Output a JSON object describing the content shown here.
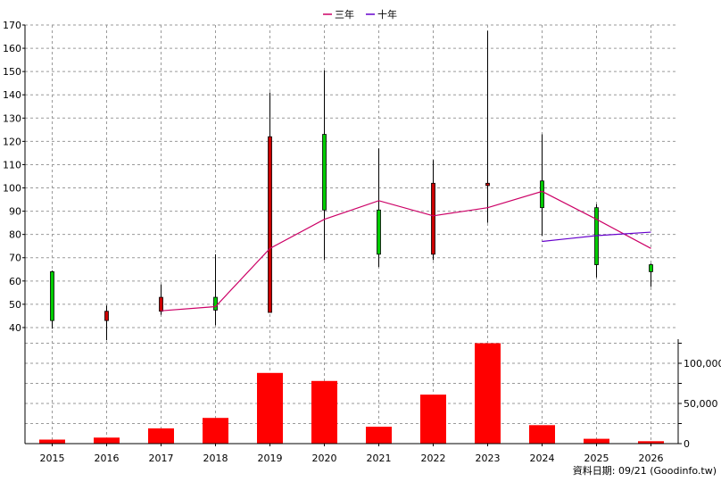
{
  "legend": [
    {
      "label": "三年",
      "color": "#cc0066"
    },
    {
      "label": "十年",
      "color": "#6600cc"
    }
  ],
  "footer": "資料日期: 09/21 (Goodinfo.tw)",
  "colors": {
    "up": "#00cc00",
    "down": "#cc0000",
    "volume": "#ff0000"
  },
  "chart_data": [
    {
      "type": "candlestick",
      "categories": [
        "2015",
        "2016",
        "2017",
        "2018",
        "2019",
        "2020",
        "2021",
        "2022",
        "2023",
        "2024",
        "2025",
        "2026"
      ],
      "ylim": [
        35,
        170
      ],
      "yticks": [
        40,
        50,
        60,
        70,
        80,
        90,
        100,
        110,
        120,
        130,
        140,
        150,
        160,
        170
      ],
      "grid": true,
      "legend_position": "top",
      "candles": [
        {
          "x": "2015",
          "open": 43.0,
          "close": 64.0,
          "high": 64.5,
          "low": 39.5
        },
        {
          "x": "2016",
          "open": 47.0,
          "close": 43.0,
          "high": 49.5,
          "low": 34.5
        },
        {
          "x": "2017",
          "open": 53.0,
          "close": 47.0,
          "high": 58.5,
          "low": 45.5
        },
        {
          "x": "2018",
          "open": 47.5,
          "close": 53.0,
          "high": 71.5,
          "low": 41.0
        },
        {
          "x": "2019",
          "open": 122.0,
          "close": 46.5,
          "high": 141.0,
          "low": 46.5
        },
        {
          "x": "2020",
          "open": 90.5,
          "close": 123.0,
          "high": 150.5,
          "low": 69.0
        },
        {
          "x": "2021",
          "open": 71.5,
          "close": 90.5,
          "high": 117.0,
          "low": 66.0
        },
        {
          "x": "2022",
          "open": 102.0,
          "close": 71.5,
          "high": 112.0,
          "low": 69.0
        },
        {
          "x": "2023",
          "open": 102.0,
          "close": 101.0,
          "high": 167.5,
          "low": 85.0
        },
        {
          "x": "2024",
          "open": 91.5,
          "close": 103.0,
          "high": 123.0,
          "low": 79.5
        },
        {
          "x": "2025",
          "open": 67.0,
          "close": 91.5,
          "high": 93.0,
          "low": 61.5
        },
        {
          "x": "2026",
          "open": 64.0,
          "close": 67.0,
          "high": 67.5,
          "low": 57.5
        }
      ],
      "series": [
        {
          "name": "三年",
          "x": [
            "2017",
            "2018",
            "2019",
            "2020",
            "2021",
            "2022",
            "2023",
            "2024",
            "2025",
            "2026"
          ],
          "values": [
            47.2,
            49.0,
            74.0,
            86.5,
            94.5,
            88.0,
            91.5,
            98.5,
            86.5,
            74.0
          ]
        },
        {
          "name": "十年",
          "x": [
            "2024",
            "2025",
            "2026"
          ],
          "values": [
            77.0,
            79.5,
            81.0
          ]
        }
      ]
    },
    {
      "type": "bar",
      "categories": [
        "2015",
        "2016",
        "2017",
        "2018",
        "2019",
        "2020",
        "2021",
        "2022",
        "2023",
        "2024",
        "2025",
        "2026"
      ],
      "values": [
        5000,
        7500,
        19000,
        32000,
        88000,
        78000,
        21000,
        61000,
        125000,
        23000,
        6000,
        3000
      ],
      "ylim": [
        0,
        130000
      ],
      "yticks": [
        0,
        25000,
        50000,
        75000,
        100000,
        125000
      ],
      "ytick_labels": [
        "0",
        "",
        "50,000",
        "",
        "100,000",
        ""
      ],
      "grid": true
    }
  ]
}
